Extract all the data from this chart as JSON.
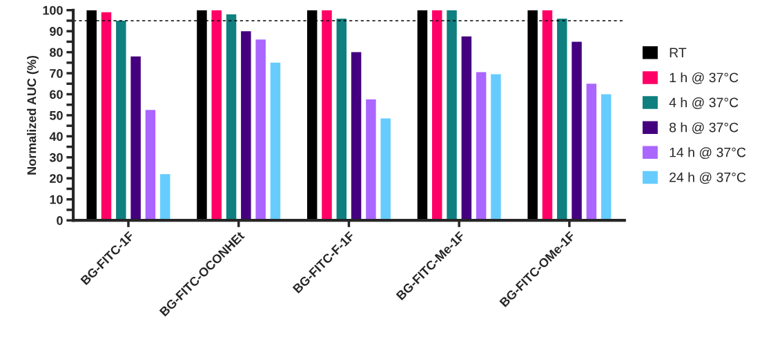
{
  "chart_data": {
    "type": "bar",
    "ylabel": "Normalized AUC (%)",
    "categories": [
      "BG-FITC-1F",
      "BG-FITC-OCONHEt",
      "BG-FITC-F-1F",
      "BG-FITC-Me-1F",
      "BG-FITC-OMe-1F"
    ],
    "series": [
      {
        "name": "RT",
        "color": "#000000",
        "values": [
          100,
          100,
          100,
          100,
          100
        ]
      },
      {
        "name": "1 h @ 37°C",
        "color": "#ff0066",
        "values": [
          99,
          100,
          100,
          100,
          100
        ]
      },
      {
        "name": "4 h @ 37°C",
        "color": "#0f7f7f",
        "values": [
          95,
          98,
          96,
          100,
          96
        ]
      },
      {
        "name": "8 h @ 37°C",
        "color": "#44007f",
        "values": [
          78,
          90,
          80,
          87.5,
          85
        ]
      },
      {
        "name": "14 h @ 37°C",
        "color": "#aa66ff",
        "values": [
          52.5,
          86,
          57.5,
          70.5,
          65
        ]
      },
      {
        "name": "24 h @ 37°C",
        "color": "#66ccff",
        "values": [
          22,
          75,
          48.5,
          69.5,
          60
        ]
      }
    ],
    "ylim": [
      0,
      100
    ],
    "yticks": [
      0,
      {
        "value": 5,
        "label": null
      },
      10,
      {
        "value": 15,
        "label": null
      },
      20,
      {
        "value": 25,
        "label": null
      },
      30,
      {
        "value": 35,
        "label": null
      },
      40,
      {
        "value": 45,
        "label": null
      },
      50,
      {
        "value": 55,
        "label": null
      },
      60,
      {
        "value": 65,
        "label": null
      },
      70,
      {
        "value": 75,
        "label": null
      },
      80,
      {
        "value": 85,
        "label": null
      },
      90,
      {
        "value": 95,
        "label": null
      },
      100
    ],
    "ref_lines": [
      {
        "axis": "y",
        "value": 95,
        "color": "#000000",
        "line_style": "dashed"
      }
    ],
    "grid": false,
    "legend": "right"
  }
}
